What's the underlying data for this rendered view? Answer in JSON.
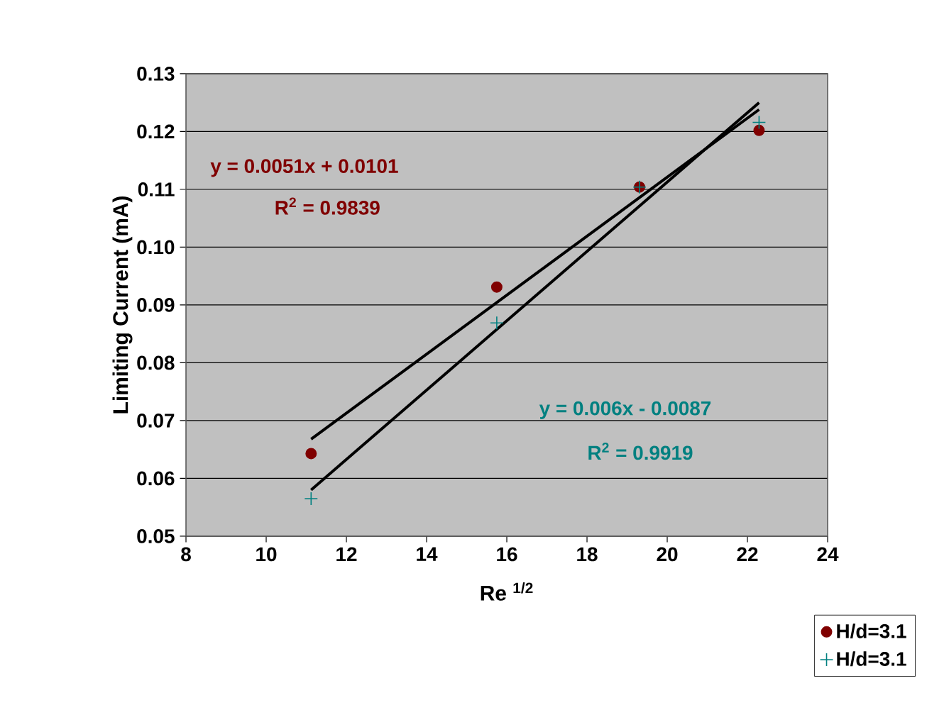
{
  "chart_data": {
    "type": "scatter",
    "xlabel": "Re $^{1/2}$",
    "ylabel": "Limiting Current (mA)",
    "xlim": [
      8,
      24
    ],
    "xticks": [
      8,
      10,
      12,
      14,
      16,
      18,
      20,
      22,
      24
    ],
    "ylim": [
      0.05,
      0.13
    ],
    "yticks": [
      0.05,
      0.06,
      0.07,
      0.08,
      0.09,
      {
        "value": 0.1,
        "label": "0.10"
      },
      0.11,
      0.12,
      0.13
    ],
    "grid": "y",
    "legend": "bottom right",
    "series": [
      {
        "name": "H/d=3.1",
        "marker": "circle",
        "color": "#800000",
        "x": [
          11.12,
          15.75,
          19.31,
          22.29
        ],
        "values": [
          0.0643,
          0.0931,
          0.1104,
          0.1202
        ]
      },
      {
        "name": "H/d=3.1",
        "marker": "cross",
        "color": "#008080",
        "x": [
          11.12,
          15.75,
          19.31,
          22.29
        ],
        "values": [
          0.0565,
          0.0869,
          0.1104,
          0.1216
        ]
      },
      {
        "type": "line",
        "color": "#000000",
        "marker": "none",
        "x": [
          11.12,
          22.29
        ],
        "values": [
          0.0668,
          0.1238
        ]
      },
      {
        "type": "line",
        "color": "#000000",
        "marker": "none",
        "x": [
          11.12,
          22.29
        ],
        "values": [
          0.058,
          0.125
        ]
      }
    ],
    "annotations": [
      "y = 0.0051x + 0.0101",
      "R$^{2}$ = 0.9839",
      "y = 0.006x - 0.0087",
      "R$^{2}$ = 0.9919"
    ]
  }
}
